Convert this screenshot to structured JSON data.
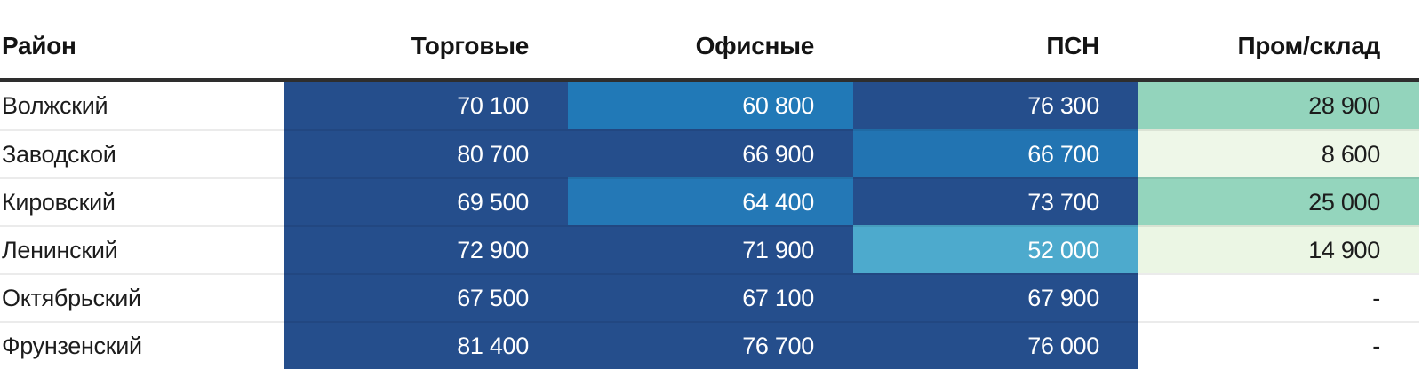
{
  "table": {
    "columns": [
      {
        "key": "district",
        "label": "Район"
      },
      {
        "key": "retail",
        "label": "Торговые"
      },
      {
        "key": "office",
        "label": "Офисные"
      },
      {
        "key": "psn",
        "label": "ПСН"
      },
      {
        "key": "industrial",
        "label": "Пром/склад"
      }
    ],
    "rows": [
      {
        "district": "Волжский",
        "cells": [
          {
            "value": "70 100",
            "bg": "#254e8c",
            "fg": "#ffffff"
          },
          {
            "value": "60 800",
            "bg": "#2179b7",
            "fg": "#ffffff"
          },
          {
            "value": "76 300",
            "bg": "#254e8c",
            "fg": "#ffffff"
          },
          {
            "value": "28 900",
            "bg": "#93d4bc",
            "fg": "#1c1c1c"
          }
        ]
      },
      {
        "district": "Заводской",
        "cells": [
          {
            "value": "80 700",
            "bg": "#254e8c",
            "fg": "#ffffff"
          },
          {
            "value": "66 900",
            "bg": "#254e8c",
            "fg": "#ffffff"
          },
          {
            "value": "66 700",
            "bg": "#2274b2",
            "fg": "#ffffff"
          },
          {
            "value": "8 600",
            "bg": "#eef7e8",
            "fg": "#1c1c1c"
          }
        ]
      },
      {
        "district": "Кировский",
        "cells": [
          {
            "value": "69 500",
            "bg": "#254e8c",
            "fg": "#ffffff"
          },
          {
            "value": "64 400",
            "bg": "#2478b6",
            "fg": "#ffffff"
          },
          {
            "value": "73 700",
            "bg": "#254e8c",
            "fg": "#ffffff"
          },
          {
            "value": "25 000",
            "bg": "#94d5bd",
            "fg": "#1c1c1c"
          }
        ]
      },
      {
        "district": "Ленинский",
        "cells": [
          {
            "value": "72 900",
            "bg": "#254e8c",
            "fg": "#ffffff"
          },
          {
            "value": "71 900",
            "bg": "#254e8c",
            "fg": "#ffffff"
          },
          {
            "value": "52 000",
            "bg": "#4daacd",
            "fg": "#ffffff"
          },
          {
            "value": "14 900",
            "bg": "#ebf6e4",
            "fg": "#1c1c1c"
          }
        ]
      },
      {
        "district": "Октябрьский",
        "cells": [
          {
            "value": "67 500",
            "bg": "#254e8c",
            "fg": "#ffffff"
          },
          {
            "value": "67 100",
            "bg": "#254e8c",
            "fg": "#ffffff"
          },
          {
            "value": "67 900",
            "bg": "#254e8c",
            "fg": "#ffffff"
          },
          {
            "value": "-",
            "bg": "",
            "fg": "#1c1c1c"
          }
        ]
      },
      {
        "district": "Фрунзенский",
        "cells": [
          {
            "value": "81 400",
            "bg": "#254e8c",
            "fg": "#ffffff"
          },
          {
            "value": "76 700",
            "bg": "#254e8c",
            "fg": "#ffffff"
          },
          {
            "value": "76 000",
            "bg": "#254e8c",
            "fg": "#ffffff"
          },
          {
            "value": "-",
            "bg": "",
            "fg": "#1c1c1c"
          }
        ]
      }
    ],
    "colors": {
      "navy": "#254e8c",
      "medium_blue": "#2179b7",
      "light_blue": "#4daacd",
      "green": "#93d4bc",
      "pale_green": "#eef7e8",
      "header_rule": "#2e2e2e",
      "row_separator": "rgba(0,0,0,0.08)"
    }
  },
  "chart_data": {
    "type": "heatmap",
    "title": "",
    "rows": [
      "Волжский",
      "Заводской",
      "Кировский",
      "Ленинский",
      "Октябрьский",
      "Фрунзенский"
    ],
    "columns": [
      "Торговые",
      "Офисные",
      "ПСН",
      "Пром/склад"
    ],
    "values": [
      [
        70100,
        60800,
        76300,
        28900
      ],
      [
        80700,
        66900,
        66700,
        8600
      ],
      [
        69500,
        64400,
        73700,
        25000
      ],
      [
        72900,
        71900,
        52000,
        14900
      ],
      [
        67500,
        67100,
        67900,
        null
      ],
      [
        81400,
        76700,
        76000,
        null
      ]
    ],
    "row_axis_label": "Район",
    "legend": "none",
    "grid": "off",
    "value_format": "thousands separated by space, null shown as '-'"
  }
}
